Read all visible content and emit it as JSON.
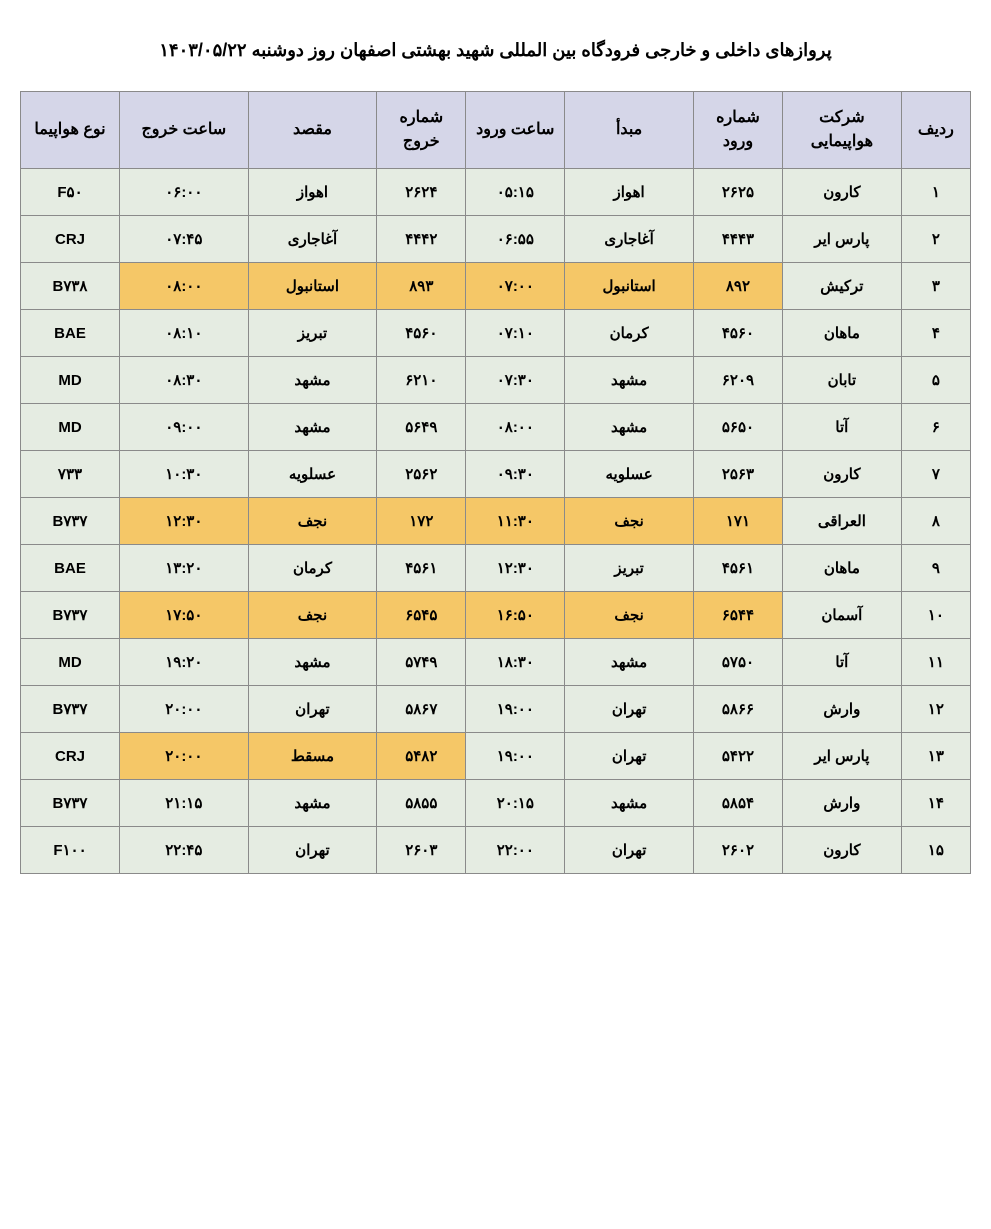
{
  "title": "پروازهای داخلی و خارجی فرودگاه بین المللی شهید بهشتی اصفهان روز دوشنبه ۱۴۰۳/۰۵/۲۲",
  "colors": {
    "header_bg": "#d5d6e8",
    "cell_bg": "#e5ece2",
    "highlight_bg": "#f5c767",
    "border": "#8a8a8a",
    "text": "#000000",
    "page_bg": "#ffffff"
  },
  "fonts": {
    "title_size": 18,
    "header_size": 16,
    "cell_size": 15,
    "weight": "bold"
  },
  "columns": [
    {
      "key": "row",
      "label": "ردیف",
      "class": "col-row"
    },
    {
      "key": "airline",
      "label": "شرکت هواپیمایی",
      "class": "col-airline"
    },
    {
      "key": "arr_num",
      "label": "شماره ورود",
      "class": "col-arrnum"
    },
    {
      "key": "origin",
      "label": "مبدأ",
      "class": "col-origin"
    },
    {
      "key": "arr_time",
      "label": "ساعت ورود",
      "class": "col-arrtime"
    },
    {
      "key": "dep_num",
      "label": "شماره خروج",
      "class": "col-depnum"
    },
    {
      "key": "dest",
      "label": "مقصد",
      "class": "col-dest"
    },
    {
      "key": "dep_time",
      "label": "ساعت خروج",
      "class": "col-deptime"
    },
    {
      "key": "aircraft",
      "label": "نوع هواپیما",
      "class": "col-aircraft"
    }
  ],
  "rows": [
    {
      "row": "۱",
      "airline": "کارون",
      "arr_num": "۲۶۲۵",
      "origin": "اهواز",
      "arr_time": "۰۵:۱۵",
      "dep_num": "۲۶۲۴",
      "dest": "اهواز",
      "dep_time": "۰۶:۰۰",
      "aircraft": "F۵۰",
      "hl": []
    },
    {
      "row": "۲",
      "airline": "پارس ایر",
      "arr_num": "۴۴۴۳",
      "origin": "آغاجاری",
      "arr_time": "۰۶:۵۵",
      "dep_num": "۴۴۴۲",
      "dest": "آغاجاری",
      "dep_time": "۰۷:۴۵",
      "aircraft": "CRJ",
      "hl": []
    },
    {
      "row": "۳",
      "airline": "ترکیش",
      "arr_num": "۸۹۲",
      "origin": "استانبول",
      "arr_time": "۰۷:۰۰",
      "dep_num": "۸۹۳",
      "dest": "استانبول",
      "dep_time": "۰۸:۰۰",
      "aircraft": "B۷۳۸",
      "hl": [
        "arr_num",
        "origin",
        "arr_time",
        "dep_num",
        "dest",
        "dep_time"
      ]
    },
    {
      "row": "۴",
      "airline": "ماهان",
      "arr_num": "۴۵۶۰",
      "origin": "کرمان",
      "arr_time": "۰۷:۱۰",
      "dep_num": "۴۵۶۰",
      "dest": "تبریز",
      "dep_time": "۰۸:۱۰",
      "aircraft": "BAE",
      "hl": []
    },
    {
      "row": "۵",
      "airline": "تابان",
      "arr_num": "۶۲۰۹",
      "origin": "مشهد",
      "arr_time": "۰۷:۳۰",
      "dep_num": "۶۲۱۰",
      "dest": "مشهد",
      "dep_time": "۰۸:۳۰",
      "aircraft": "MD",
      "hl": []
    },
    {
      "row": "۶",
      "airline": "آتا",
      "arr_num": "۵۶۵۰",
      "origin": "مشهد",
      "arr_time": "۰۸:۰۰",
      "dep_num": "۵۶۴۹",
      "dest": "مشهد",
      "dep_time": "۰۹:۰۰",
      "aircraft": "MD",
      "hl": []
    },
    {
      "row": "۷",
      "airline": "کارون",
      "arr_num": "۲۵۶۳",
      "origin": "عسلویه",
      "arr_time": "۰۹:۳۰",
      "dep_num": "۲۵۶۲",
      "dest": "عسلویه",
      "dep_time": "۱۰:۳۰",
      "aircraft": "۷۳۳",
      "hl": []
    },
    {
      "row": "۸",
      "airline": "العراقی",
      "arr_num": "۱۷۱",
      "origin": "نجف",
      "arr_time": "۱۱:۳۰",
      "dep_num": "۱۷۲",
      "dest": "نجف",
      "dep_time": "۱۲:۳۰",
      "aircraft": "B۷۳۷",
      "hl": [
        "arr_num",
        "origin",
        "arr_time",
        "dep_num",
        "dest",
        "dep_time"
      ]
    },
    {
      "row": "۹",
      "airline": "ماهان",
      "arr_num": "۴۵۶۱",
      "origin": "تبریز",
      "arr_time": "۱۲:۳۰",
      "dep_num": "۴۵۶۱",
      "dest": "کرمان",
      "dep_time": "۱۳:۲۰",
      "aircraft": "BAE",
      "hl": []
    },
    {
      "row": "۱۰",
      "airline": "آسمان",
      "arr_num": "۶۵۴۴",
      "origin": "نجف",
      "arr_time": "۱۶:۵۰",
      "dep_num": "۶۵۴۵",
      "dest": "نجف",
      "dep_time": "۱۷:۵۰",
      "aircraft": "B۷۳۷",
      "hl": [
        "arr_num",
        "origin",
        "arr_time",
        "dep_num",
        "dest",
        "dep_time"
      ]
    },
    {
      "row": "۱۱",
      "airline": "آتا",
      "arr_num": "۵۷۵۰",
      "origin": "مشهد",
      "arr_time": "۱۸:۳۰",
      "dep_num": "۵۷۴۹",
      "dest": "مشهد",
      "dep_time": "۱۹:۲۰",
      "aircraft": "MD",
      "hl": []
    },
    {
      "row": "۱۲",
      "airline": "وارش",
      "arr_num": "۵۸۶۶",
      "origin": "تهران",
      "arr_time": "۱۹:۰۰",
      "dep_num": "۵۸۶۷",
      "dest": "تهران",
      "dep_time": "۲۰:۰۰",
      "aircraft": "B۷۳۷",
      "hl": []
    },
    {
      "row": "۱۳",
      "airline": "پارس ایر",
      "arr_num": "۵۴۲۲",
      "origin": "تهران",
      "arr_time": "۱۹:۰۰",
      "dep_num": "۵۴۸۲",
      "dest": "مسقط",
      "dep_time": "۲۰:۰۰",
      "aircraft": "CRJ",
      "hl": [
        "dep_num",
        "dest",
        "dep_time"
      ]
    },
    {
      "row": "۱۴",
      "airline": "وارش",
      "arr_num": "۵۸۵۴",
      "origin": "مشهد",
      "arr_time": "۲۰:۱۵",
      "dep_num": "۵۸۵۵",
      "dest": "مشهد",
      "dep_time": "۲۱:۱۵",
      "aircraft": "B۷۳۷",
      "hl": []
    },
    {
      "row": "۱۵",
      "airline": "کارون",
      "arr_num": "۲۶۰۲",
      "origin": "تهران",
      "arr_time": "۲۲:۰۰",
      "dep_num": "۲۶۰۳",
      "dest": "تهران",
      "dep_time": "۲۲:۴۵",
      "aircraft": "F۱۰۰",
      "hl": []
    }
  ]
}
